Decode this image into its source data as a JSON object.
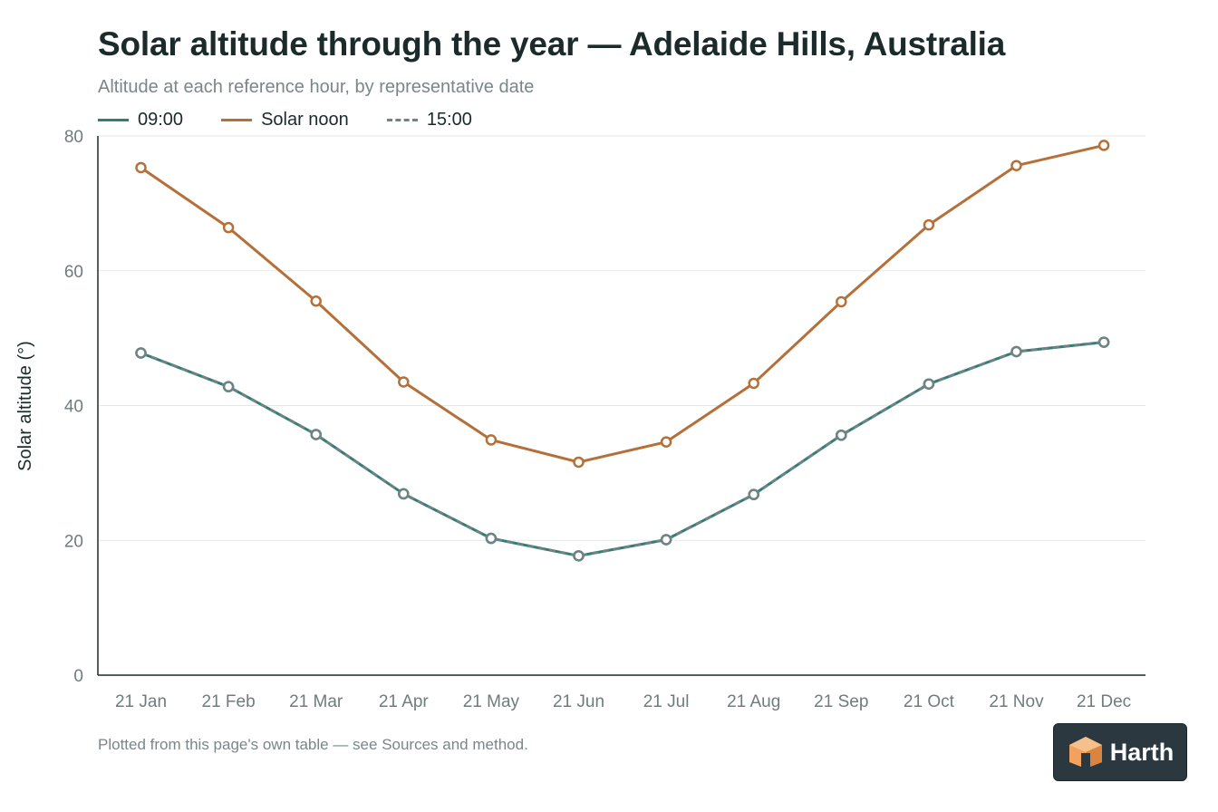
{
  "colors": {
    "series_0900": "#2f7f78",
    "series_noon": "#b5703a",
    "series_1500": "#6e8383",
    "axis": "#1b2a2a",
    "grid": "#e6e9ea",
    "tick_label": "#6f7c7e",
    "badge_bg": "#2b3840",
    "logo_orange": "#f0a25e"
  },
  "chart_data": {
    "type": "line",
    "title": "Solar altitude through the year — Adelaide Hills, Australia",
    "subtitle": "Altitude at each reference hour, by representative date",
    "xlabel": "",
    "ylabel": "Solar altitude (°)",
    "ylim": [
      0,
      80
    ],
    "yticks": [
      "0",
      "20",
      "40",
      "60",
      "80"
    ],
    "grid": true,
    "legend_position": "top-left",
    "categories": [
      "21 Jan",
      "21 Feb",
      "21 Mar",
      "21 Apr",
      "21 May",
      "21 Jun",
      "21 Jul",
      "21 Aug",
      "21 Sep",
      "21 Oct",
      "21 Nov",
      "21 Dec"
    ],
    "series": [
      {
        "name": "09:00",
        "values": [
          47.8,
          42.8,
          35.7,
          26.9,
          20.3,
          17.7,
          20.1,
          26.8,
          35.6,
          43.2,
          48.0,
          49.4
        ]
      },
      {
        "name": "Solar noon",
        "values": [
          75.3,
          66.4,
          55.5,
          43.5,
          34.9,
          31.6,
          34.6,
          43.3,
          55.4,
          66.8,
          75.6,
          78.6
        ]
      },
      {
        "name": "15:00",
        "values": [
          47.8,
          42.8,
          35.7,
          26.9,
          20.3,
          17.7,
          20.1,
          26.8,
          35.6,
          43.2,
          48.0,
          49.4
        ]
      }
    ]
  },
  "legend": {
    "item_0900": "09:00",
    "item_noon": "Solar noon",
    "item_1500": "15:00"
  },
  "footnote": "Plotted from this page's own table — see Sources and method.",
  "badge": {
    "icon": "harth-logo-icon",
    "label": "Harth"
  }
}
